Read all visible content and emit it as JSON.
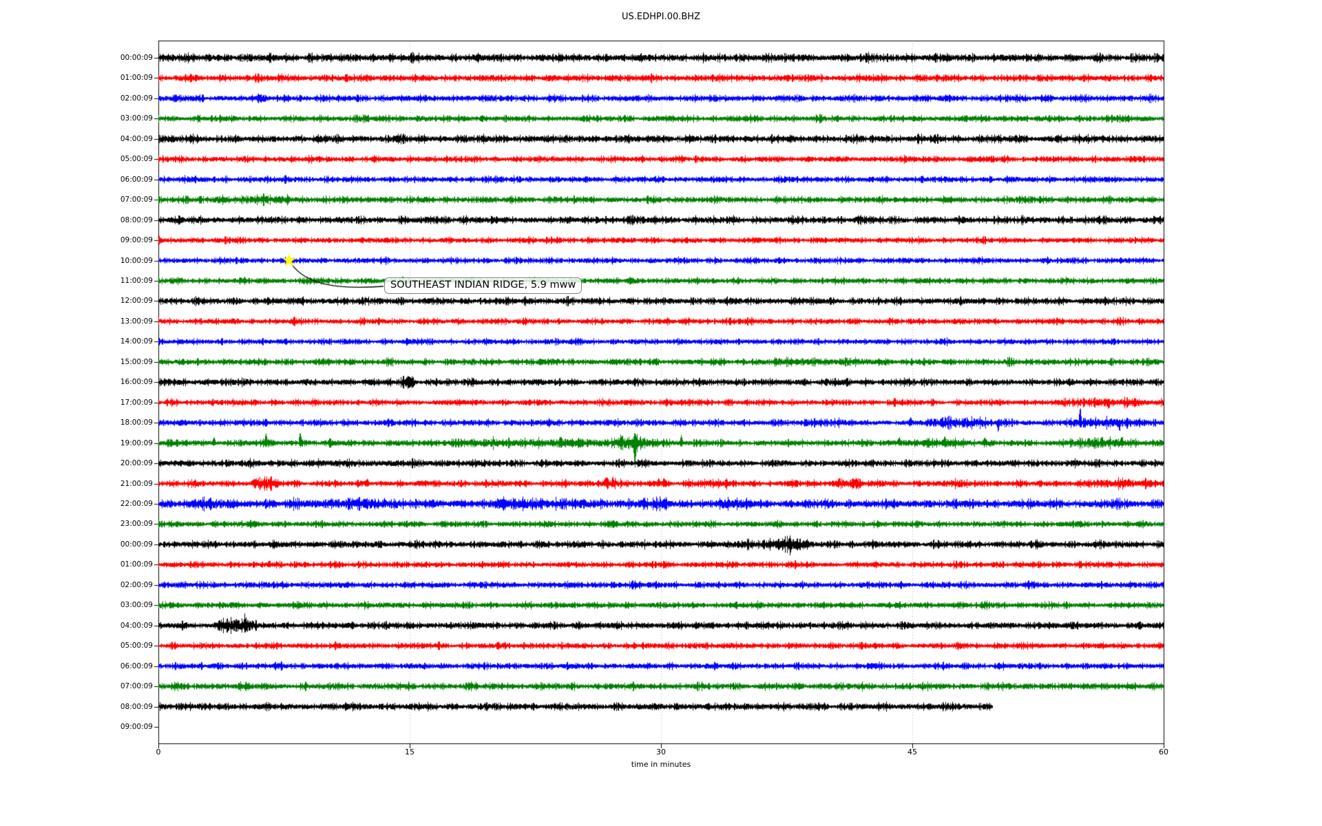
{
  "figure": {
    "title": "US.EDHPI.00.BHZ"
  },
  "chart_data": {
    "type": "line",
    "subtype": "helicorder-dayplot",
    "title": "US.EDHPI.00.BHZ",
    "xlabel": "time in minutes",
    "x_range": [
      0,
      60
    ],
    "x_ticks": [
      0,
      15,
      30,
      45,
      60
    ],
    "grid": "vertical-dotted",
    "grid_color": "#b3b3b3",
    "trace_color_cycle": [
      "#000000",
      "#ff0000",
      "#0000ff",
      "#008000"
    ],
    "annotation": {
      "text": "SOUTHEAST INDIAN RIDGE, 5.9 mww",
      "row_index": 10,
      "row_label": "10:00:09",
      "x_min": 7.8,
      "marker": "star",
      "marker_color": "#ffff00"
    },
    "rows": [
      {
        "label": "00:00:09",
        "color": "#000000",
        "amp": 4.0,
        "end_min": 60,
        "events": []
      },
      {
        "label": "01:00:09",
        "color": "#ff0000",
        "amp": 3.6,
        "end_min": 60,
        "events": []
      },
      {
        "label": "02:00:09",
        "color": "#0000ff",
        "amp": 3.4,
        "end_min": 60,
        "events": []
      },
      {
        "label": "03:00:09",
        "color": "#008000",
        "amp": 3.2,
        "end_min": 60,
        "events": []
      },
      {
        "label": "04:00:09",
        "color": "#000000",
        "amp": 3.8,
        "end_min": 60,
        "events": []
      },
      {
        "label": "05:00:09",
        "color": "#ff0000",
        "amp": 3.2,
        "end_min": 60,
        "events": []
      },
      {
        "label": "06:00:09",
        "color": "#0000ff",
        "amp": 3.2,
        "end_min": 60,
        "events": []
      },
      {
        "label": "07:00:09",
        "color": "#008000",
        "amp": 3.3,
        "end_min": 60,
        "events": [
          {
            "type": "burst",
            "t0": 3,
            "t1": 9,
            "amp": 1.2
          }
        ]
      },
      {
        "label": "08:00:09",
        "color": "#000000",
        "amp": 3.7,
        "end_min": 60,
        "events": []
      },
      {
        "label": "09:00:09",
        "color": "#ff0000",
        "amp": 3.0,
        "end_min": 60,
        "events": []
      },
      {
        "label": "10:00:09",
        "color": "#0000ff",
        "amp": 3.0,
        "end_min": 60,
        "events": []
      },
      {
        "label": "11:00:09",
        "color": "#008000",
        "amp": 3.1,
        "end_min": 60,
        "events": []
      },
      {
        "label": "12:00:09",
        "color": "#000000",
        "amp": 3.6,
        "end_min": 60,
        "events": []
      },
      {
        "label": "13:00:09",
        "color": "#ff0000",
        "amp": 3.1,
        "end_min": 60,
        "events": []
      },
      {
        "label": "14:00:09",
        "color": "#0000ff",
        "amp": 3.0,
        "end_min": 60,
        "events": []
      },
      {
        "label": "15:00:09",
        "color": "#008000",
        "amp": 3.3,
        "end_min": 60,
        "events": [
          {
            "type": "burst",
            "t0": 36,
            "t1": 44,
            "amp": 1.0
          }
        ]
      },
      {
        "label": "16:00:09",
        "color": "#000000",
        "amp": 3.5,
        "end_min": 60,
        "events": [
          {
            "type": "burst",
            "t0": 14.4,
            "t1": 15.4,
            "amp": 2.5
          }
        ]
      },
      {
        "label": "17:00:09",
        "color": "#ff0000",
        "amp": 3.1,
        "end_min": 60,
        "events": [
          {
            "type": "burst",
            "t0": 54,
            "t1": 60,
            "amp": 1.4
          },
          {
            "type": "spike",
            "t": 56.7,
            "up": 2,
            "down": 9
          }
        ]
      },
      {
        "label": "18:00:09",
        "color": "#0000ff",
        "amp": 3.3,
        "end_min": 60,
        "events": [
          {
            "type": "burst",
            "t0": 38,
            "t1": 41,
            "amp": 1.2
          },
          {
            "type": "burst",
            "t0": 45.8,
            "t1": 49.6,
            "amp": 3.2
          },
          {
            "type": "spike",
            "t": 44.9,
            "up": 6,
            "down": 3
          },
          {
            "type": "spike",
            "t": 50.1,
            "up": 3,
            "down": 12
          },
          {
            "type": "burst",
            "t0": 54.3,
            "t1": 58.6,
            "amp": 2.2
          },
          {
            "type": "spike",
            "t": 55.0,
            "up": 21,
            "down": 4
          },
          {
            "type": "spike",
            "t": 57.35,
            "up": 3,
            "down": 9
          },
          {
            "type": "spike",
            "t": 57.8,
            "up": 7,
            "down": 7
          }
        ]
      },
      {
        "label": "19:00:09",
        "color": "#008000",
        "amp": 3.3,
        "end_min": 60,
        "events": [
          {
            "type": "spike",
            "t": 3.3,
            "up": 9,
            "down": 3
          },
          {
            "type": "spike",
            "t": 6.4,
            "up": 13,
            "down": 3
          },
          {
            "type": "spike",
            "t": 8.45,
            "up": 19,
            "down": 4
          },
          {
            "type": "burst",
            "t0": 17,
            "t1": 31,
            "amp": 1.8
          },
          {
            "type": "spike",
            "t": 24.0,
            "up": 6,
            "down": 2
          },
          {
            "type": "burst",
            "t0": 27.2,
            "t1": 29.2,
            "amp": 2.5
          },
          {
            "type": "spike",
            "t": 27.6,
            "up": 8,
            "down": 3
          },
          {
            "type": "spike",
            "t": 28.42,
            "up": 9,
            "down": 40
          },
          {
            "type": "spike",
            "t": 31.2,
            "up": 11,
            "down": 3
          },
          {
            "type": "burst",
            "t0": 43.5,
            "t1": 50,
            "amp": 1.2
          },
          {
            "type": "spike",
            "t": 44.2,
            "up": 8,
            "down": 2
          },
          {
            "type": "spike",
            "t": 46.9,
            "up": 7,
            "down": 2
          },
          {
            "type": "spike",
            "t": 49.3,
            "up": 8,
            "down": 2
          },
          {
            "type": "burst",
            "t0": 54,
            "t1": 58.5,
            "amp": 2.2
          },
          {
            "type": "spike",
            "t": 56.3,
            "up": 6,
            "down": 2
          },
          {
            "type": "spike",
            "t": 57.5,
            "up": 6,
            "down": 2
          }
        ]
      },
      {
        "label": "20:00:09",
        "color": "#000000",
        "amp": 3.4,
        "end_min": 60,
        "events": [
          {
            "type": "burst",
            "t0": 0,
            "t1": 19,
            "amp": 0.5
          }
        ]
      },
      {
        "label": "21:00:09",
        "color": "#ff0000",
        "amp": 3.3,
        "end_min": 60,
        "events": [
          {
            "type": "burst",
            "t0": 5.4,
            "t1": 7.2,
            "amp": 2.8
          },
          {
            "type": "spike",
            "t": 12.45,
            "up": 6,
            "down": 2
          },
          {
            "type": "burst",
            "t0": 26.2,
            "t1": 27.7,
            "amp": 2
          },
          {
            "type": "spike",
            "t": 26.7,
            "up": 8,
            "down": 2
          },
          {
            "type": "spike",
            "t": 27.1,
            "up": 8,
            "down": 2
          },
          {
            "type": "spike",
            "t": 29.85,
            "up": 7,
            "down": 2
          },
          {
            "type": "spike",
            "t": 30.15,
            "up": 7,
            "down": 2
          },
          {
            "type": "burst",
            "t0": 31.5,
            "t1": 33.6,
            "amp": 1.4
          },
          {
            "type": "spike",
            "t": 33.9,
            "up": 5,
            "down": 5
          },
          {
            "type": "burst",
            "t0": 40.2,
            "t1": 42,
            "amp": 2
          },
          {
            "type": "spike",
            "t": 40.6,
            "up": 6,
            "down": 2
          },
          {
            "type": "burst",
            "t0": 47,
            "t1": 49,
            "amp": 1.4
          },
          {
            "type": "burst",
            "t0": 55.5,
            "t1": 59.5,
            "amp": 1.8
          },
          {
            "type": "spike",
            "t": 57.9,
            "up": 5,
            "down": 2
          }
        ]
      },
      {
        "label": "22:00:09",
        "color": "#0000ff",
        "amp": 4.3,
        "end_min": 60,
        "events": [
          {
            "type": "burst",
            "t0": 1.5,
            "t1": 4.5,
            "amp": 1.6
          },
          {
            "type": "burst",
            "t0": 8,
            "t1": 15.5,
            "amp": 1.6
          },
          {
            "type": "spike",
            "t": 13.5,
            "up": 6,
            "down": 2
          },
          {
            "type": "burst",
            "t0": 19,
            "t1": 25.5,
            "amp": 2
          },
          {
            "type": "spike",
            "t": 20.6,
            "up": 6,
            "down": 6
          },
          {
            "type": "burst",
            "t0": 28,
            "t1": 30.5,
            "amp": 1.6
          },
          {
            "type": "spike",
            "t": 29.0,
            "up": 6,
            "down": 2
          },
          {
            "type": "burst",
            "t0": 33,
            "t1": 35.5,
            "amp": 1.3
          }
        ]
      },
      {
        "label": "23:00:09",
        "color": "#008000",
        "amp": 3.2,
        "end_min": 60,
        "events": []
      },
      {
        "label": "00:00:09",
        "color": "#000000",
        "amp": 3.5,
        "end_min": 60,
        "events": [
          {
            "type": "burst",
            "t0": 34.8,
            "t1": 36.2,
            "amp": 1.6
          },
          {
            "type": "burst",
            "t0": 36.3,
            "t1": 38.8,
            "amp": 3.5
          },
          {
            "type": "spike",
            "t": 36.1,
            "up": 5,
            "down": 5
          },
          {
            "type": "spike",
            "t": 37.7,
            "up": 9,
            "down": 9
          }
        ]
      },
      {
        "label": "01:00:09",
        "color": "#ff0000",
        "amp": 3.1,
        "end_min": 60,
        "events": [
          {
            "type": "spike",
            "t": 6.6,
            "up": 5,
            "down": 2
          }
        ]
      },
      {
        "label": "02:00:09",
        "color": "#0000ff",
        "amp": 3.3,
        "end_min": 60,
        "events": []
      },
      {
        "label": "03:00:09",
        "color": "#008000",
        "amp": 3.2,
        "end_min": 60,
        "events": []
      },
      {
        "label": "04:00:09",
        "color": "#000000",
        "amp": 3.5,
        "end_min": 60,
        "events": [
          {
            "type": "burst",
            "t0": 3.3,
            "t1": 5.9,
            "amp": 3.5
          },
          {
            "type": "spike",
            "t": 3.6,
            "up": 2,
            "down": 6
          },
          {
            "type": "spike",
            "t": 4.1,
            "up": 4,
            "down": 8
          },
          {
            "type": "spike",
            "t": 5.15,
            "up": 12,
            "down": 5
          }
        ]
      },
      {
        "label": "05:00:09",
        "color": "#ff0000",
        "amp": 3.1,
        "end_min": 60,
        "events": []
      },
      {
        "label": "06:00:09",
        "color": "#0000ff",
        "amp": 3.2,
        "end_min": 60,
        "events": []
      },
      {
        "label": "07:00:09",
        "color": "#008000",
        "amp": 3.4,
        "end_min": 60,
        "events": []
      },
      {
        "label": "08:00:09",
        "color": "#000000",
        "amp": 3.6,
        "end_min": 49.8,
        "events": []
      },
      {
        "label": "09:00:09",
        "color": "#ff0000",
        "amp": 0,
        "end_min": 0,
        "events": []
      }
    ]
  }
}
